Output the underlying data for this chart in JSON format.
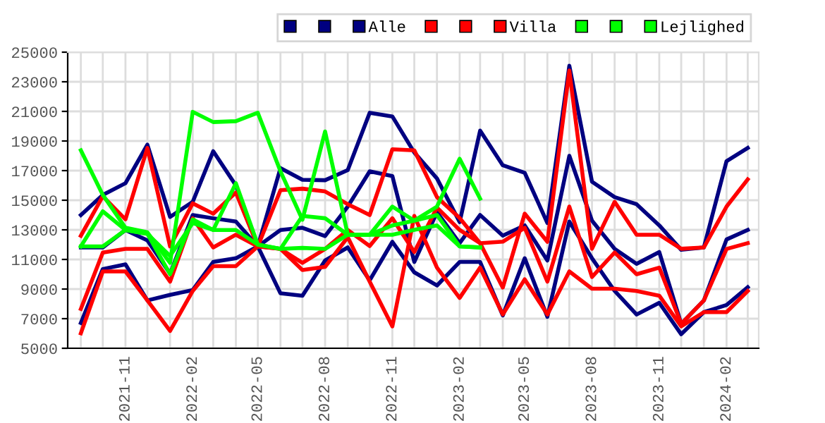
{
  "chart_data": {
    "type": "line",
    "x": [
      "2021-09",
      "2021-10",
      "2021-11",
      "2021-12",
      "2022-01",
      "2022-02",
      "2022-03",
      "2022-04",
      "2022-05",
      "2022-06",
      "2022-07",
      "2022-08",
      "2022-09",
      "2022-10",
      "2022-11",
      "2022-12",
      "2023-01",
      "2023-02",
      "2023-03",
      "2023-04",
      "2023-05",
      "2023-06",
      "2023-07",
      "2023-08",
      "2023-09",
      "2023-10",
      "2023-11",
      "2023-12",
      "2024-01",
      "2024-02",
      "2024-03"
    ],
    "series": [
      {
        "color": "#000080",
        "values": [
          14000,
          15360,
          16150,
          18750,
          13870,
          14890,
          18310,
          16000,
          11880,
          17170,
          16380,
          16350,
          17040,
          20910,
          20660,
          18220,
          16470,
          13520,
          19700,
          17360,
          16850,
          13460,
          24080,
          16250,
          15210,
          14730,
          13300,
          11650,
          11810,
          17640,
          18530
        ]
      },
      {
        "color": "#000080",
        "values": [
          6710,
          10350,
          10670,
          8230,
          8610,
          8930,
          10830,
          11080,
          11880,
          8710,
          8550,
          10930,
          11810,
          9590,
          12190,
          10130,
          9240,
          10830,
          10830,
          7220,
          11080,
          7120,
          13560,
          11080,
          8870,
          7280,
          8070,
          5950,
          7440,
          7920,
          9120
        ]
      },
      {
        "name": "Alle",
        "color": "#000080",
        "values": [
          11810,
          11810,
          12990,
          12290,
          10040,
          14000,
          13780,
          13560,
          11880,
          12990,
          13140,
          12580,
          14570,
          16950,
          16630,
          10830,
          14190,
          12100,
          14000,
          12610,
          13300,
          10930,
          18000,
          13620,
          11710,
          10700,
          11500,
          6650,
          8230,
          12350,
          12990
        ]
      },
      {
        "color": "#ff0000",
        "values": [
          12600,
          15270,
          13710,
          18530,
          11880,
          14790,
          14090,
          15520,
          11880,
          15680,
          15780,
          15590,
          14730,
          14000,
          18440,
          18370,
          15210,
          13800,
          12100,
          9100,
          14090,
          12190,
          23760,
          11720,
          14890,
          12670,
          12670,
          11720,
          11810,
          14570,
          16410
        ]
      },
      {
        "color": "#ff0000",
        "values": [
          6010,
          10190,
          10190,
          8230,
          6170,
          8870,
          10550,
          10550,
          11880,
          11710,
          10290,
          10500,
          12500,
          9500,
          6480,
          13940,
          10450,
          8400,
          10450,
          7280,
          9660,
          7280,
          10190,
          9020,
          9020,
          8870,
          8550,
          6480,
          7440,
          7440,
          8870
        ]
      },
      {
        "name": "Villa",
        "color": "#ff0000",
        "values": [
          7660,
          11460,
          11710,
          11710,
          9500,
          13780,
          11810,
          12670,
          11880,
          11710,
          10770,
          11710,
          12990,
          11900,
          13780,
          11500,
          14500,
          12990,
          12100,
          12200,
          13140,
          9500,
          14570,
          9820,
          11470,
          10000,
          10450,
          6650,
          8230,
          11710,
          12100
        ]
      },
      {
        "color": "#00ff00",
        "values": [
          18370,
          15360,
          13140,
          12830,
          10770,
          20970,
          20280,
          20340,
          20910,
          16950,
          13680,
          19640,
          12670,
          12670,
          14570,
          13620,
          14570,
          17800,
          15110,
          null,
          null,
          null,
          null,
          null,
          null,
          null,
          null,
          null,
          null,
          null,
          null
        ]
      },
      {
        "color": "#00ff00",
        "values": [
          11880,
          11880,
          12990,
          12730,
          10000,
          13700,
          12990,
          12990,
          12000,
          11710,
          11780,
          11710,
          12670,
          12670,
          12670,
          13000,
          13300,
          11880,
          11810,
          null,
          null,
          null,
          null,
          null,
          null,
          null,
          null,
          null,
          null,
          null,
          null
        ]
      },
      {
        "name": "Lejlighed",
        "color": "#00ff00",
        "values": [
          11880,
          14250,
          12990,
          12730,
          11240,
          13460,
          12990,
          16150,
          12000,
          11710,
          13940,
          13780,
          12670,
          12670,
          13300,
          13620,
          14000,
          11880,
          11810,
          null,
          null,
          null,
          null,
          null,
          null,
          null,
          null,
          null,
          null,
          null,
          null
        ]
      }
    ],
    "xlim": [
      "2021-08-14",
      "2024-03-16"
    ],
    "xticks": [
      {
        "value": "2021-09",
        "label": null
      },
      {
        "value": "2021-10",
        "label": null
      },
      {
        "value": "2021-11",
        "label": "2021-11"
      },
      {
        "value": "2021-12",
        "label": null
      },
      {
        "value": "2022-01",
        "label": null
      },
      {
        "value": "2022-02",
        "label": "2022-02"
      },
      {
        "value": "2022-03",
        "label": null
      },
      {
        "value": "2022-04",
        "label": null
      },
      {
        "value": "2022-05",
        "label": "2022-05"
      },
      {
        "value": "2022-06",
        "label": null
      },
      {
        "value": "2022-07",
        "label": null
      },
      {
        "value": "2022-08",
        "label": "2022-08"
      },
      {
        "value": "2022-09",
        "label": null
      },
      {
        "value": "2022-10",
        "label": null
      },
      {
        "value": "2022-11",
        "label": "2022-11"
      },
      {
        "value": "2022-12",
        "label": null
      },
      {
        "value": "2023-01",
        "label": null
      },
      {
        "value": "2023-02",
        "label": "2023-02"
      },
      {
        "value": "2023-03",
        "label": null
      },
      {
        "value": "2023-04",
        "label": null
      },
      {
        "value": "2023-05",
        "label": "2023-05"
      },
      {
        "value": "2023-06",
        "label": null
      },
      {
        "value": "2023-07",
        "label": null
      },
      {
        "value": "2023-08",
        "label": "2023-08"
      },
      {
        "value": "2023-09",
        "label": null
      },
      {
        "value": "2023-10",
        "label": null
      },
      {
        "value": "2023-11",
        "label": "2023-11"
      },
      {
        "value": "2023-12",
        "label": null
      },
      {
        "value": "2024-01",
        "label": null
      },
      {
        "value": "2024-02",
        "label": "2024-02"
      },
      {
        "value": "2024-03",
        "label": null
      }
    ],
    "ylim": [
      5000,
      25000
    ],
    "yticks": [
      5000,
      7000,
      9000,
      11000,
      13000,
      15000,
      17000,
      19000,
      21000,
      23000,
      25000
    ],
    "grid": true,
    "legend": "top right",
    "marker": "none",
    "line_style": "solid"
  }
}
